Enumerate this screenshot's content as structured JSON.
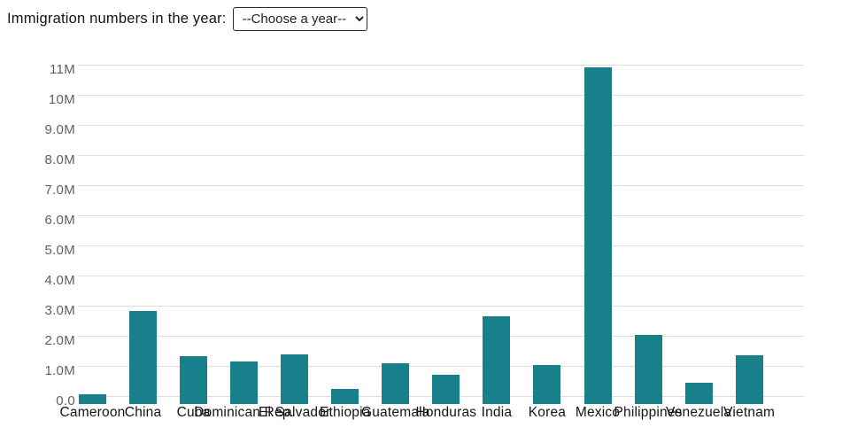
{
  "header": {
    "label": "Immigration numbers in the year:",
    "year_select": {
      "selected_option": "--Choose a year--"
    }
  },
  "chart_data": {
    "type": "bar",
    "title": "",
    "xlabel": "",
    "ylabel": "",
    "unit": "people",
    "categories": [
      "Cameroon",
      "China",
      "Cuba",
      "Dominican Rep.",
      "El Salvador",
      "Ethiopia",
      "Guatemala",
      "Honduras",
      "India",
      "Korea",
      "Mexico",
      "Philippines",
      "Venezuela",
      "Vietnam"
    ],
    "values": [
      80000,
      2850000,
      1330000,
      1160000,
      1390000,
      260000,
      1100000,
      720000,
      2650000,
      1040000,
      10930000,
      2030000,
      450000,
      1360000
    ],
    "y_ticks": [
      {
        "value": 0,
        "label": "0.0"
      },
      {
        "value": 1000000,
        "label": "1.0M"
      },
      {
        "value": 2000000,
        "label": "2.0M"
      },
      {
        "value": 3000000,
        "label": "3.0M"
      },
      {
        "value": 4000000,
        "label": "4.0M"
      },
      {
        "value": 5000000,
        "label": "5.0M"
      },
      {
        "value": 6000000,
        "label": "6.0M"
      },
      {
        "value": 7000000,
        "label": "7.0M"
      },
      {
        "value": 8000000,
        "label": "8.0M"
      },
      {
        "value": 9000000,
        "label": "9.0M"
      },
      {
        "value": 10000000,
        "label": "10M"
      },
      {
        "value": 11000000,
        "label": "11M"
      }
    ],
    "ylim": [
      -250000,
      11250000
    ],
    "grid": true,
    "legend": false,
    "colors": {
      "bar": "#17808a",
      "grid": "#e0ded9",
      "y_tick_label": "#5f5f5f",
      "x_tick_label": "#141414"
    }
  }
}
